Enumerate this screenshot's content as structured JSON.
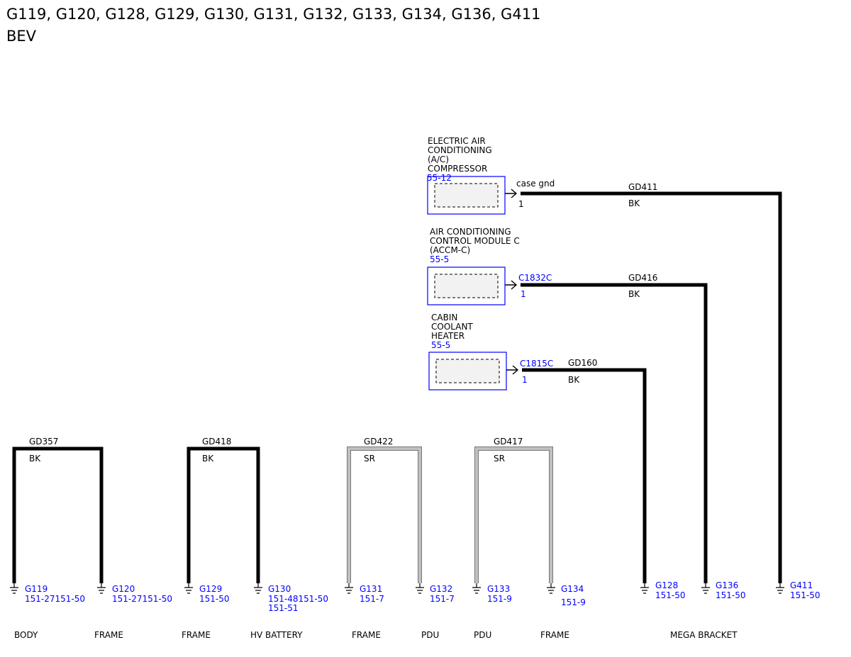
{
  "header": {
    "title": "G119, G120, G128, G129, G130, G131, G132, G133, G134, G136, G411",
    "subtitle": "BEV"
  },
  "colors": {
    "wire_black": "#000000",
    "wire_silver": "#c0c0c0",
    "link_blue": "#0000ff",
    "component_border": "#0000ff",
    "component_fill": "#f2f2f2"
  },
  "components": [
    {
      "name_lines": [
        "ELECTRIC AIR",
        "CONDITIONING",
        "(A/C)",
        "COMPRESSOR"
      ],
      "ref": "55-12",
      "connector": "case gnd",
      "pin": "1",
      "circuit": "GD411",
      "wire_color": "BK"
    },
    {
      "name_lines": [
        "AIR CONDITIONING",
        "CONTROL MODULE C",
        "(ACCM-C)"
      ],
      "ref": "55-5",
      "connector": "C1832C",
      "pin": "1",
      "circuit": "GD416",
      "wire_color": "BK"
    },
    {
      "name_lines": [
        "CABIN",
        "COOLANT",
        "HEATER"
      ],
      "ref": "55-5",
      "connector": "C1815C",
      "pin": "1",
      "circuit": "GD160",
      "wire_color": "BK"
    }
  ],
  "splices": [
    {
      "circuit": "GD357",
      "wire_color": "BK"
    },
    {
      "circuit": "GD418",
      "wire_color": "BK"
    },
    {
      "circuit": "GD422",
      "wire_color": "SR"
    },
    {
      "circuit": "GD417",
      "wire_color": "SR"
    }
  ],
  "grounds": [
    {
      "id": "G119",
      "refs": [
        "151-27151-50"
      ]
    },
    {
      "id": "G120",
      "refs": [
        "151-27151-50"
      ]
    },
    {
      "id": "G129",
      "refs": [
        "151-50"
      ]
    },
    {
      "id": "G130",
      "refs": [
        "151-48151-50",
        "151-51"
      ]
    },
    {
      "id": "G131",
      "refs": [
        "151-7"
      ]
    },
    {
      "id": "G132",
      "refs": [
        "151-7"
      ]
    },
    {
      "id": "G133",
      "refs": [
        "151-9"
      ]
    },
    {
      "id": "G134",
      "refs": [
        "151-9"
      ]
    },
    {
      "id": "G128",
      "refs": [
        "151-50"
      ]
    },
    {
      "id": "G136",
      "refs": [
        "151-50"
      ]
    },
    {
      "id": "G411",
      "refs": [
        "151-50"
      ]
    }
  ],
  "locations": [
    "BODY",
    "FRAME",
    "FRAME",
    "HV BATTERY",
    "FRAME",
    "PDU",
    "PDU",
    "FRAME",
    "MEGA BRACKET"
  ]
}
